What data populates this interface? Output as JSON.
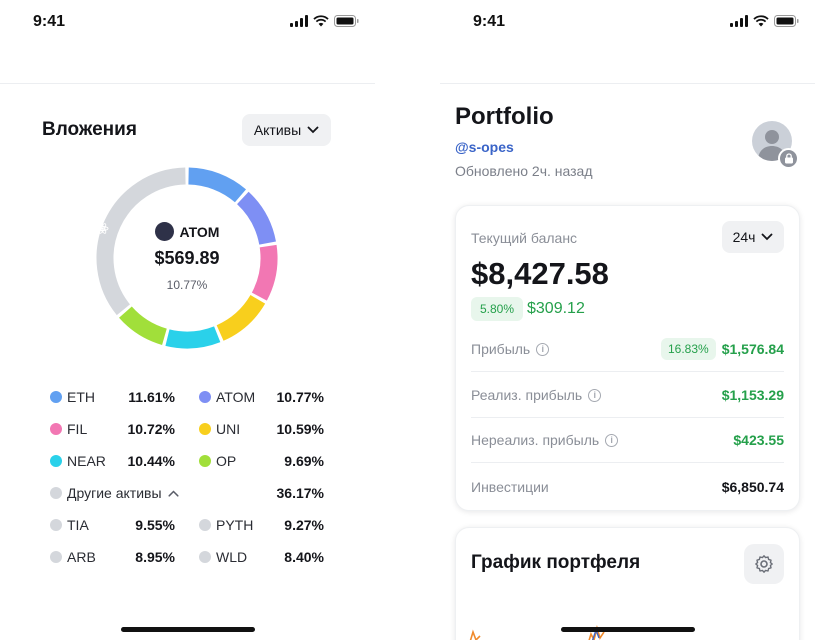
{
  "status_bar": {
    "time": "9:41"
  },
  "investments": {
    "title": "Вложения",
    "filter_label": "Активы",
    "center": {
      "asset": "ATOM",
      "value": "$569.89",
      "percent": "10.77%"
    },
    "legend_rows": [
      [
        {
          "name": "ETH",
          "percent": "11.61%",
          "color": "#61a0f1"
        },
        {
          "name": "ATOM",
          "percent": "10.77%",
          "color": "#7e8ff4"
        }
      ],
      [
        {
          "name": "FIL",
          "percent": "10.72%",
          "color": "#f277b3"
        },
        {
          "name": "UNI",
          "percent": "10.59%",
          "color": "#f8cf1d"
        }
      ],
      [
        {
          "name": "NEAR",
          "percent": "10.44%",
          "color": "#2ad1ea"
        },
        {
          "name": "OP",
          "percent": "9.69%",
          "color": "#a1df3a"
        }
      ]
    ],
    "others": {
      "label": "Другие активы",
      "percent": "36.17%",
      "color": "#d4d7dc"
    },
    "others_rows": [
      [
        {
          "name": "TIA",
          "percent": "9.55%",
          "color": "#d4d7dc"
        },
        {
          "name": "PYTH",
          "percent": "9.27%",
          "color": "#d4d7dc"
        }
      ],
      [
        {
          "name": "ARB",
          "percent": "8.95%",
          "color": "#d4d7dc"
        },
        {
          "name": "WLD",
          "percent": "8.40%",
          "color": "#d4d7dc"
        }
      ]
    ],
    "donut_segments": [
      {
        "name": "ETH",
        "value": 11.61,
        "color": "#61a0f1"
      },
      {
        "name": "ATOM",
        "value": 10.77,
        "color": "#7e8ff4"
      },
      {
        "name": "FIL",
        "value": 10.72,
        "color": "#f277b3"
      },
      {
        "name": "UNI",
        "value": 10.59,
        "color": "#f8cf1d"
      },
      {
        "name": "NEAR",
        "value": 10.44,
        "color": "#2ad1ea"
      },
      {
        "name": "OP",
        "value": 9.69,
        "color": "#a1df3a"
      },
      {
        "name": "Другие активы",
        "value": 36.17,
        "color": "#d4d7dc"
      }
    ]
  },
  "portfolio": {
    "title": "Portfolio",
    "handle": "@s-opes",
    "updated": "Обновлено 2ч. назад",
    "balance": {
      "label": "Текущий баланс",
      "period": "24ч",
      "value": "$8,427.58",
      "change_percent": "5.80%",
      "change_value": "$309.12"
    },
    "metrics": {
      "profit": {
        "label": "Прибыль",
        "percent": "16.83%",
        "value": "$1,576.84"
      },
      "realized": {
        "label": "Реализ. прибыль",
        "value": "$1,153.29"
      },
      "unrealized": {
        "label": "Нереализ. прибыль",
        "value": "$423.55"
      },
      "invested": {
        "label": "Инвестиции",
        "value": "$6,850.74"
      }
    },
    "chart_card": {
      "title": "График портфеля"
    }
  },
  "colors": {
    "accent_green": "#25a04b",
    "link_blue": "#3a64c8"
  }
}
